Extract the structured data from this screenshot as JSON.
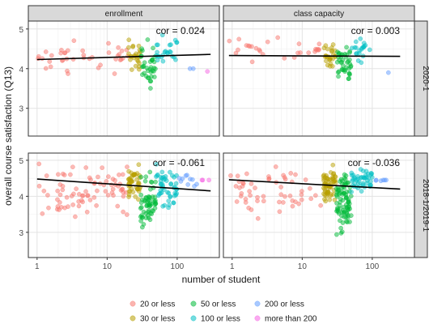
{
  "chart_data": {
    "type": "scatter",
    "x_scale": "log10",
    "xlabel": "number of student",
    "ylabel": "overall course satisfaction (Q13)",
    "x_ticks": [
      1,
      10,
      100
    ],
    "y_ticks": [
      3,
      4,
      5
    ],
    "col_facets": [
      "enrollment",
      "class capacity"
    ],
    "row_facets": [
      "2020-1",
      "2018-1/2019-1"
    ],
    "grid": true,
    "legend_position": "bottom",
    "legend": [
      {
        "label": "20 or less",
        "color": "#F8766D"
      },
      {
        "label": "30 or less",
        "color": "#B79F00"
      },
      {
        "label": "50 or less",
        "color": "#00BA38"
      },
      {
        "label": "100 or less",
        "color": "#00BFC4"
      },
      {
        "label": "200 or less",
        "color": "#619CFF"
      },
      {
        "label": "more than 200",
        "color": "#F564E3"
      }
    ],
    "panels": [
      {
        "row": 0,
        "col": 0,
        "ylim": [
          2.3,
          5.2
        ],
        "cor_label": "cor = 0.024",
        "fit": {
          "x": [
            1,
            300
          ],
          "y": [
            4.23,
            4.36
          ]
        },
        "clusters": [
          {
            "group": 0,
            "n": 40,
            "x": [
              1,
              20
            ],
            "y": [
              3.5,
              4.85
            ]
          },
          {
            "group": 1,
            "n": 25,
            "x": [
              20,
              30
            ],
            "y": [
              3.6,
              4.85
            ]
          },
          {
            "group": 2,
            "n": 35,
            "x": [
              30,
              50
            ],
            "y": [
              3.15,
              4.85
            ]
          },
          {
            "group": 3,
            "n": 25,
            "x": [
              50,
              100
            ],
            "y": [
              3.8,
              4.85
            ]
          },
          {
            "group": 4,
            "n": 2,
            "x": [
              150,
              200
            ],
            "y": [
              3.9,
              4.0
            ]
          },
          {
            "group": 5,
            "n": 1,
            "x": [
              270,
              270
            ],
            "y": [
              3.93,
              3.93
            ]
          }
        ]
      },
      {
        "row": 0,
        "col": 1,
        "ylim": [
          2.3,
          5.2
        ],
        "cor_label": "cor = 0.003",
        "fit": {
          "x": [
            0.9,
            250
          ],
          "y": [
            4.33,
            4.31
          ]
        },
        "clusters": [
          {
            "group": 0,
            "n": 28,
            "x": [
              0.9,
              20
            ],
            "y": [
              3.75,
              4.85
            ]
          },
          {
            "group": 1,
            "n": 25,
            "x": [
              20,
              30
            ],
            "y": [
              3.7,
              4.85
            ]
          },
          {
            "group": 2,
            "n": 40,
            "x": [
              30,
              50
            ],
            "y": [
              3.25,
              4.85
            ]
          },
          {
            "group": 3,
            "n": 20,
            "x": [
              50,
              100
            ],
            "y": [
              3.9,
              4.85
            ]
          },
          {
            "group": 4,
            "n": 1,
            "x": [
              170,
              170
            ],
            "y": [
              3.9,
              3.9
            ]
          }
        ]
      },
      {
        "row": 1,
        "col": 0,
        "ylim": [
          2.3,
          5.2
        ],
        "cor_label": "cor = -0.061",
        "fit": {
          "x": [
            1,
            300
          ],
          "y": [
            4.48,
            4.15
          ]
        },
        "clusters": [
          {
            "group": 0,
            "n": 80,
            "x": [
              1,
              20
            ],
            "y": [
              2.95,
              5.0
            ]
          },
          {
            "group": 1,
            "n": 45,
            "x": [
              20,
              30
            ],
            "y": [
              3.55,
              4.95
            ]
          },
          {
            "group": 2,
            "n": 60,
            "x": [
              30,
              50
            ],
            "y": [
              2.5,
              4.9
            ]
          },
          {
            "group": 3,
            "n": 50,
            "x": [
              50,
              100
            ],
            "y": [
              3.25,
              4.9
            ]
          },
          {
            "group": 4,
            "n": 10,
            "x": [
              100,
              200
            ],
            "y": [
              4.05,
              4.65
            ]
          },
          {
            "group": 5,
            "n": 3,
            "x": [
              210,
              300
            ],
            "y": [
              4.3,
              4.45
            ]
          }
        ]
      },
      {
        "row": 1,
        "col": 1,
        "ylim": [
          2.3,
          5.2
        ],
        "cor_label": "cor = -0.036",
        "fit": {
          "x": [
            0.9,
            250
          ],
          "y": [
            4.46,
            4.2
          ]
        },
        "clusters": [
          {
            "group": 0,
            "n": 55,
            "x": [
              0.9,
              20
            ],
            "y": [
              3.0,
              5.0
            ]
          },
          {
            "group": 1,
            "n": 60,
            "x": [
              20,
              30
            ],
            "y": [
              3.4,
              4.95
            ]
          },
          {
            "group": 2,
            "n": 85,
            "x": [
              30,
              50
            ],
            "y": [
              2.5,
              4.95
            ]
          },
          {
            "group": 3,
            "n": 45,
            "x": [
              50,
              100
            ],
            "y": [
              3.8,
              4.85
            ]
          },
          {
            "group": 4,
            "n": 6,
            "x": [
              100,
              200
            ],
            "y": [
              4.25,
              4.45
            ]
          }
        ]
      }
    ]
  }
}
